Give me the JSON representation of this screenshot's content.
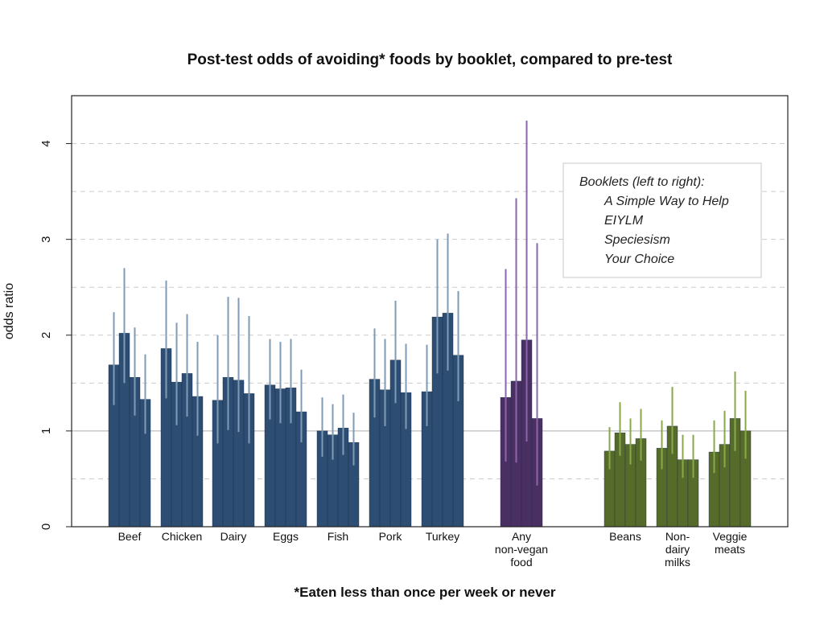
{
  "chart_data": {
    "type": "bar",
    "title": "Post-test odds of avoiding* foods by booklet, compared to pre-test",
    "xlabel": "*Eaten less than once per week or never",
    "ylabel": "odds ratio",
    "ylim": [
      0,
      4.5
    ],
    "yticks": [
      0,
      1,
      2,
      3,
      4
    ],
    "grid": "horizontal dashed at 0.5 intervals, solid reference line at 1",
    "legend": {
      "placement": "top-right",
      "title": "Booklets (left to right):",
      "entries": [
        "A Simple Way to Help",
        "EIYLM",
        "Speciesism",
        "Your Choice"
      ]
    },
    "colors": {
      "animal": "#2d4d72",
      "animal_ci": "#7f9bb5",
      "any": "#4a2f63",
      "any_ci": "#8a67aa",
      "plant": "#566b2a",
      "plant_ci": "#88a84a"
    },
    "groups": [
      {
        "label": "Beef",
        "kind": "animal",
        "values": [
          1.69,
          2.02,
          1.56,
          1.33
        ],
        "ci_low": [
          1.27,
          1.5,
          1.16,
          0.97
        ],
        "ci_high": [
          2.24,
          2.7,
          2.08,
          1.8
        ]
      },
      {
        "label": "Chicken",
        "kind": "animal",
        "values": [
          1.86,
          1.51,
          1.6,
          1.36
        ],
        "ci_low": [
          1.34,
          1.06,
          1.15,
          0.95
        ],
        "ci_high": [
          2.57,
          2.13,
          2.22,
          1.93
        ]
      },
      {
        "label": "Dairy",
        "kind": "animal",
        "values": [
          1.32,
          1.56,
          1.53,
          1.39
        ],
        "ci_low": [
          0.87,
          1.01,
          0.99,
          0.87
        ],
        "ci_high": [
          2.0,
          2.4,
          2.39,
          2.2
        ]
      },
      {
        "label": "Eggs",
        "kind": "animal",
        "values": [
          1.48,
          1.44,
          1.45,
          1.2
        ],
        "ci_low": [
          1.12,
          1.08,
          1.08,
          0.88
        ],
        "ci_high": [
          1.96,
          1.93,
          1.96,
          1.64
        ]
      },
      {
        "label": "Fish",
        "kind": "animal",
        "values": [
          1.0,
          0.96,
          1.03,
          0.88
        ],
        "ci_low": [
          0.73,
          0.7,
          0.75,
          0.64
        ],
        "ci_high": [
          1.35,
          1.28,
          1.38,
          1.19
        ]
      },
      {
        "label": "Pork",
        "kind": "animal",
        "values": [
          1.54,
          1.43,
          1.74,
          1.4
        ],
        "ci_low": [
          1.14,
          1.05,
          1.29,
          1.02
        ],
        "ci_high": [
          2.07,
          1.96,
          2.36,
          1.91
        ]
      },
      {
        "label": "Turkey",
        "kind": "animal",
        "values": [
          1.41,
          2.19,
          2.23,
          1.79
        ],
        "ci_low": [
          1.05,
          1.6,
          1.63,
          1.31
        ],
        "ci_high": [
          1.9,
          3.0,
          3.06,
          2.46
        ]
      },
      {
        "label": "Any\nnon-vegan\nfood",
        "kind": "any",
        "values": [
          1.35,
          1.52,
          1.95,
          1.13
        ],
        "ci_low": [
          0.68,
          0.67,
          0.89,
          0.43
        ],
        "ci_high": [
          2.69,
          3.43,
          4.24,
          2.96
        ]
      },
      {
        "label": "Beans",
        "kind": "plant",
        "values": [
          0.79,
          0.98,
          0.86,
          0.92
        ],
        "ci_low": [
          0.6,
          0.74,
          0.65,
          0.69
        ],
        "ci_high": [
          1.04,
          1.3,
          1.13,
          1.23
        ]
      },
      {
        "label": "Non-\ndairy\nmilks",
        "kind": "plant",
        "values": [
          0.82,
          1.05,
          0.7,
          0.7
        ],
        "ci_low": [
          0.6,
          0.76,
          0.51,
          0.51
        ],
        "ci_high": [
          1.11,
          1.46,
          0.96,
          0.96
        ]
      },
      {
        "label": "Veggie\nmeats",
        "kind": "plant",
        "values": [
          0.78,
          0.86,
          1.13,
          1.0
        ],
        "ci_low": [
          0.56,
          0.62,
          0.79,
          0.71
        ],
        "ci_high": [
          1.11,
          1.21,
          1.62,
          1.42
        ]
      }
    ]
  }
}
